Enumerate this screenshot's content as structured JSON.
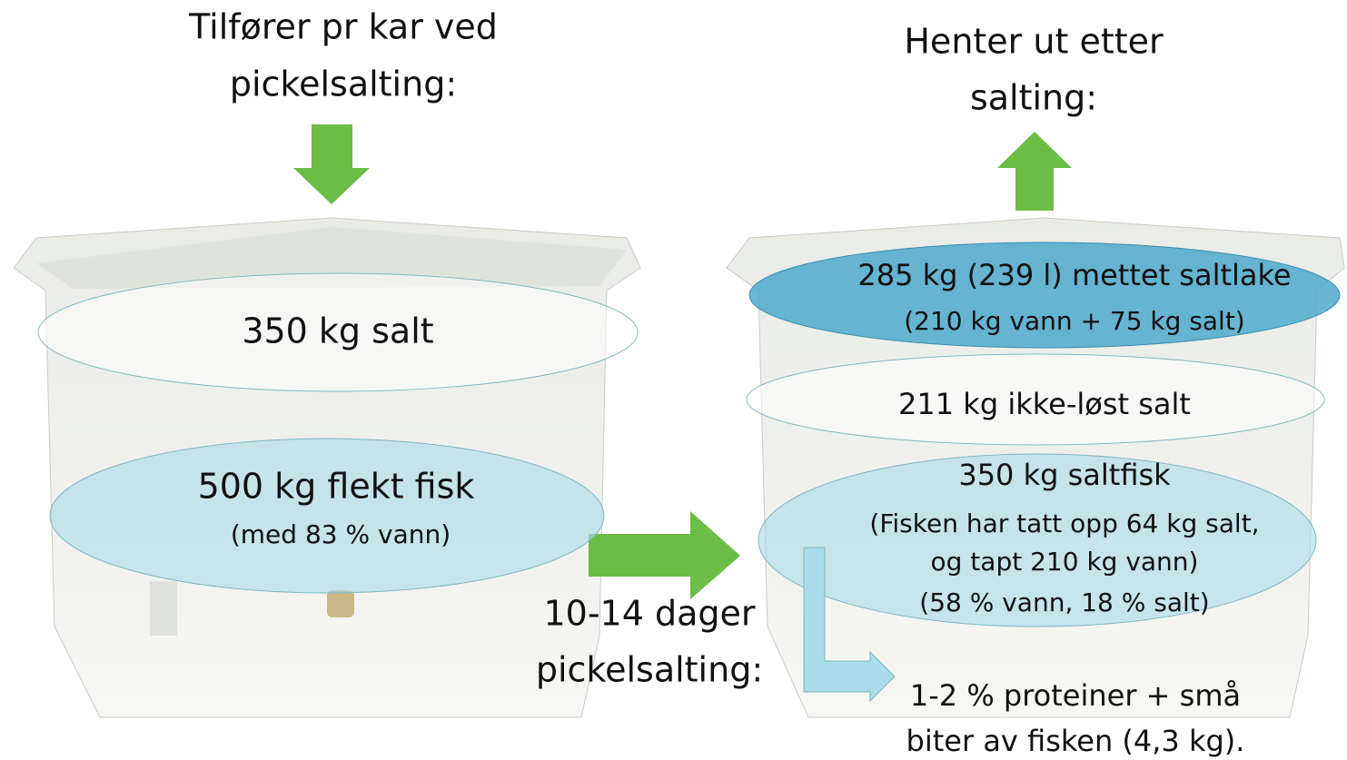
{
  "left": {
    "title": [
      "Tilfører pr kar ved",
      "pickelsalting:"
    ],
    "salt": "350 kg salt",
    "fish": "500 kg flekt fisk",
    "fish_note": "(med 83 % vann)"
  },
  "middle": {
    "label": [
      "10-14 dager",
      "pickelsalting:"
    ]
  },
  "right": {
    "title": [
      "Henter ut etter",
      "salting:"
    ],
    "brine": [
      "285 kg (239 l) mettet saltlake",
      "(210 kg vann + 75 kg salt)"
    ],
    "undissolved": "211 kg ikke-løst salt",
    "fish": [
      "350 kg saltfisk",
      "(Fisken har tatt opp 64 kg salt,",
      "og tapt 210 kg vann)",
      "(58 % vann, 18 % salt)"
    ],
    "loss": [
      "1-2 % proteiner + små",
      "biter av fisken (4,3 kg)."
    ]
  }
}
